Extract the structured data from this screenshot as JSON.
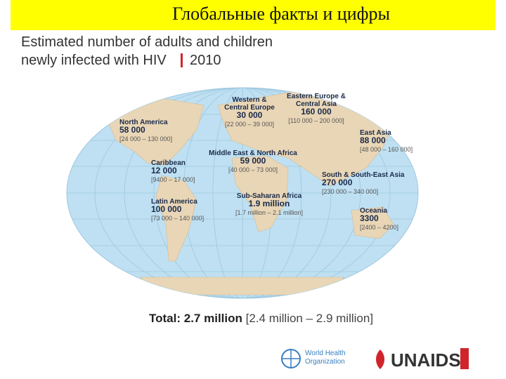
{
  "header": {
    "title": "Глобальные факты и цифры"
  },
  "heading": {
    "line1": "Estimated number of adults and children",
    "line2": "newly infected with HIV",
    "year": "2010"
  },
  "regions": [
    {
      "name": "North America",
      "value": "58 000",
      "range": "[24 000 – 130 000]"
    },
    {
      "name": "Western & Central Europe",
      "value": "30 000",
      "range": "[22 000 – 39 000]"
    },
    {
      "name": "Eastern Europe & Central Asia",
      "value": "160 000",
      "range": "[110 000 – 200 000]"
    },
    {
      "name": "East Asia",
      "value": "88 000",
      "range": "[48 000 – 160 000]"
    },
    {
      "name": "Middle East & North Africa",
      "value": "59 000",
      "range": "[40 000 – 73 000]"
    },
    {
      "name": "Caribbean",
      "value": "12 000",
      "range": "[9400 – 17 000]"
    },
    {
      "name": "South & South-East Asia",
      "value": "270 000",
      "range": "[230 000 – 340 000]"
    },
    {
      "name": "Latin America",
      "value": "100 000",
      "range": "[73 000 – 140 000]"
    },
    {
      "name": "Sub-Saharan Africa",
      "value": "1.9 million",
      "range": "[1.7 million – 2.1 million]"
    },
    {
      "name": "Oceania",
      "value": "3300",
      "range": "[2400 – 4200]"
    }
  ],
  "total": {
    "label": "Total:",
    "value": "2.7 million",
    "range": "[2.4 million – 2.9 million]"
  },
  "logos": {
    "who": "World Health Organization",
    "unaids": "UNAIDS"
  }
}
